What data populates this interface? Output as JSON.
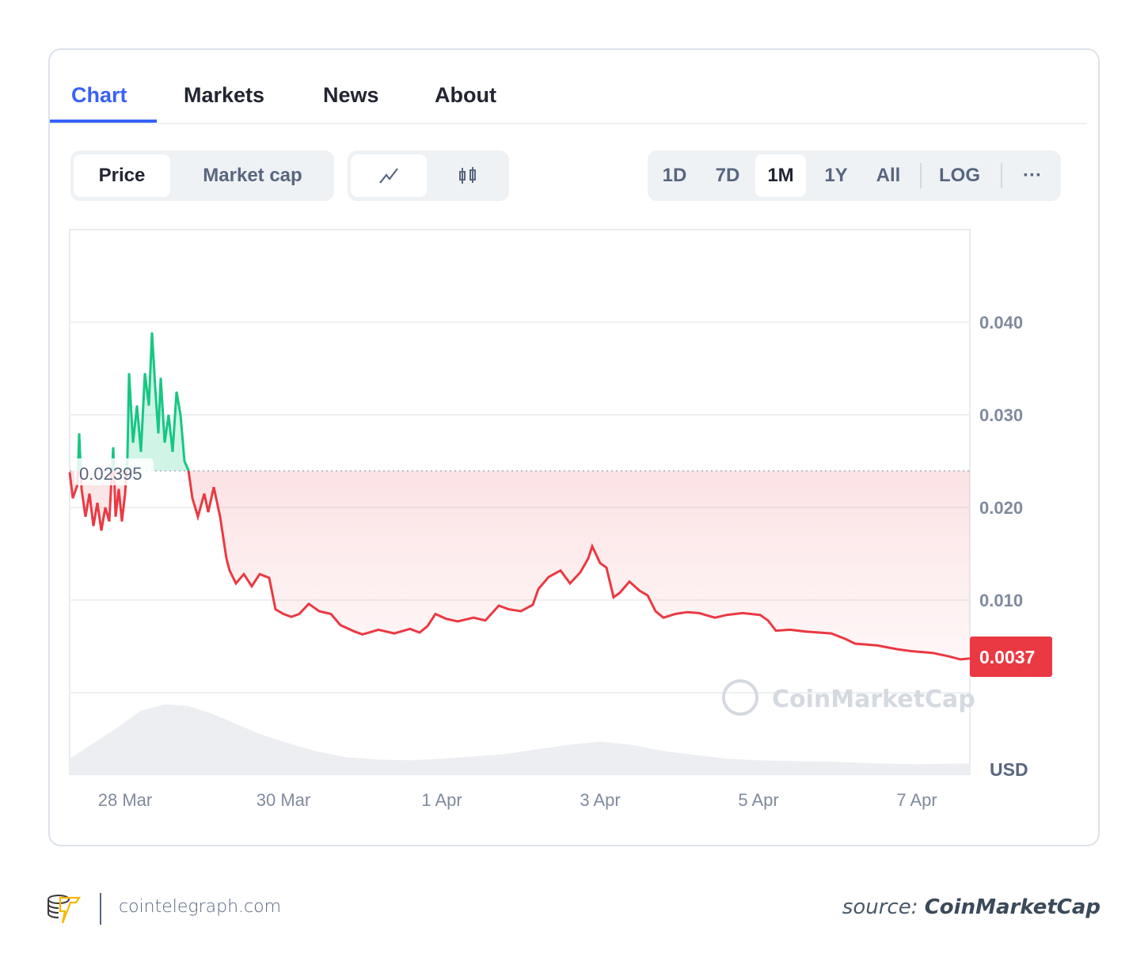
{
  "tabs": [
    {
      "label": "Chart"
    },
    {
      "label": "Markets"
    },
    {
      "label": "News"
    },
    {
      "label": "About"
    }
  ],
  "toggle": {
    "price": "Price",
    "market_cap": "Market cap"
  },
  "view_icons": [
    "line-chart-icon",
    "candlestick-icon"
  ],
  "ranges": [
    "1D",
    "7D",
    "1M",
    "1Y",
    "All"
  ],
  "log": "LOG",
  "more": "···",
  "colors": {
    "accent": "#3861fb",
    "up": "#16c784",
    "down": "#ea3943"
  },
  "chart_data": {
    "type": "line",
    "title": "",
    "xlabel": "",
    "ylabel": "USD",
    "currency": "USD",
    "x_unit": "days since 28 Mar",
    "xticks": [
      {
        "day": 0,
        "label": "28 Mar"
      },
      {
        "day": 2,
        "label": "30 Mar"
      },
      {
        "day": 4,
        "label": "1 Apr"
      },
      {
        "day": 6,
        "label": "3 Apr"
      },
      {
        "day": 8,
        "label": "5 Apr"
      },
      {
        "day": 10,
        "label": "7 Apr"
      }
    ],
    "yticks": [
      {
        "v": 0.01,
        "label": "0.010"
      },
      {
        "v": 0.02,
        "label": "0.020"
      },
      {
        "v": 0.03,
        "label": "0.030"
      },
      {
        "v": 0.04,
        "label": "0.040"
      }
    ],
    "ylim": [
      0,
      0.05
    ],
    "xlim": [
      -0.7,
      10.67
    ],
    "reference_price": 0.02395,
    "reference_label": "0.02395",
    "current_price_label": "0.0037",
    "watermark": "CoinMarketCap",
    "grid": true,
    "series": [
      {
        "name": "Price",
        "points": [
          [
            -0.7,
            0.0238
          ],
          [
            -0.66,
            0.021
          ],
          [
            -0.6,
            0.0225
          ],
          [
            -0.58,
            0.028
          ],
          [
            -0.55,
            0.022
          ],
          [
            -0.5,
            0.019
          ],
          [
            -0.45,
            0.0215
          ],
          [
            -0.4,
            0.018
          ],
          [
            -0.35,
            0.0205
          ],
          [
            -0.3,
            0.0175
          ],
          [
            -0.25,
            0.02
          ],
          [
            -0.2,
            0.0185
          ],
          [
            -0.15,
            0.0265
          ],
          [
            -0.12,
            0.019
          ],
          [
            -0.08,
            0.022
          ],
          [
            -0.04,
            0.0185
          ],
          [
            0,
            0.0215
          ],
          [
            0.03,
            0.0255
          ],
          [
            0.05,
            0.0345
          ],
          [
            0.1,
            0.027
          ],
          [
            0.15,
            0.031
          ],
          [
            0.2,
            0.026
          ],
          [
            0.25,
            0.0345
          ],
          [
            0.3,
            0.031
          ],
          [
            0.34,
            0.0389
          ],
          [
            0.38,
            0.033
          ],
          [
            0.42,
            0.028
          ],
          [
            0.45,
            0.034
          ],
          [
            0.5,
            0.027
          ],
          [
            0.55,
            0.03
          ],
          [
            0.6,
            0.026
          ],
          [
            0.65,
            0.0325
          ],
          [
            0.7,
            0.03
          ],
          [
            0.75,
            0.025
          ],
          [
            0.8,
            0.024
          ],
          [
            0.85,
            0.021
          ],
          [
            0.92,
            0.019
          ],
          [
            1.0,
            0.0215
          ],
          [
            1.05,
            0.0195
          ],
          [
            1.12,
            0.0222
          ],
          [
            1.2,
            0.019
          ],
          [
            1.28,
            0.0145
          ],
          [
            1.32,
            0.0132
          ],
          [
            1.4,
            0.0118
          ],
          [
            1.5,
            0.0128
          ],
          [
            1.6,
            0.0115
          ],
          [
            1.7,
            0.0128
          ],
          [
            1.82,
            0.0124
          ],
          [
            1.9,
            0.009
          ],
          [
            2.0,
            0.0085
          ],
          [
            2.1,
            0.0082
          ],
          [
            2.2,
            0.0085
          ],
          [
            2.32,
            0.0096
          ],
          [
            2.45,
            0.0088
          ],
          [
            2.6,
            0.0085
          ],
          [
            2.72,
            0.0073
          ],
          [
            2.9,
            0.0066
          ],
          [
            3.0,
            0.0063
          ],
          [
            3.2,
            0.0068
          ],
          [
            3.4,
            0.0064
          ],
          [
            3.6,
            0.0069
          ],
          [
            3.72,
            0.0065
          ],
          [
            3.82,
            0.0072
          ],
          [
            3.92,
            0.0085
          ],
          [
            4.05,
            0.008
          ],
          [
            4.2,
            0.0077
          ],
          [
            4.4,
            0.0081
          ],
          [
            4.55,
            0.0078
          ],
          [
            4.72,
            0.0094
          ],
          [
            4.85,
            0.009
          ],
          [
            5.0,
            0.0088
          ],
          [
            5.15,
            0.0095
          ],
          [
            5.22,
            0.0112
          ],
          [
            5.35,
            0.0125
          ],
          [
            5.5,
            0.0132
          ],
          [
            5.62,
            0.0118
          ],
          [
            5.75,
            0.013
          ],
          [
            5.85,
            0.0145
          ],
          [
            5.9,
            0.0158
          ],
          [
            6.0,
            0.014
          ],
          [
            6.08,
            0.0135
          ],
          [
            6.17,
            0.0103
          ],
          [
            6.25,
            0.0108
          ],
          [
            6.37,
            0.012
          ],
          [
            6.5,
            0.011
          ],
          [
            6.6,
            0.0105
          ],
          [
            6.7,
            0.0088
          ],
          [
            6.8,
            0.0081
          ],
          [
            6.95,
            0.0085
          ],
          [
            7.1,
            0.0087
          ],
          [
            7.25,
            0.0086
          ],
          [
            7.45,
            0.0081
          ],
          [
            7.6,
            0.0084
          ],
          [
            7.8,
            0.0086
          ],
          [
            8.02,
            0.0084
          ],
          [
            8.12,
            0.0078
          ],
          [
            8.22,
            0.0067
          ],
          [
            8.4,
            0.0068
          ],
          [
            8.6,
            0.0066
          ],
          [
            8.92,
            0.0064
          ],
          [
            9.1,
            0.0058
          ],
          [
            9.22,
            0.0053
          ],
          [
            9.5,
            0.0051
          ],
          [
            9.75,
            0.0047
          ],
          [
            9.92,
            0.0045
          ],
          [
            10.2,
            0.0043
          ],
          [
            10.42,
            0.0039
          ],
          [
            10.55,
            0.0036
          ],
          [
            10.67,
            0.0037
          ]
        ]
      }
    ],
    "volume_relative": [
      [
        -0.7,
        0.2
      ],
      [
        -0.4,
        0.4
      ],
      [
        -0.1,
        0.6
      ],
      [
        0.2,
        0.82
      ],
      [
        0.5,
        0.9
      ],
      [
        0.8,
        0.88
      ],
      [
        1.1,
        0.78
      ],
      [
        1.4,
        0.65
      ],
      [
        1.7,
        0.52
      ],
      [
        2.0,
        0.42
      ],
      [
        2.4,
        0.3
      ],
      [
        2.8,
        0.22
      ],
      [
        3.2,
        0.19
      ],
      [
        3.6,
        0.18
      ],
      [
        4.0,
        0.2
      ],
      [
        4.4,
        0.23
      ],
      [
        4.8,
        0.26
      ],
      [
        5.2,
        0.32
      ],
      [
        5.6,
        0.38
      ],
      [
        6.0,
        0.42
      ],
      [
        6.4,
        0.38
      ],
      [
        6.8,
        0.3
      ],
      [
        7.2,
        0.25
      ],
      [
        7.6,
        0.2
      ],
      [
        8.0,
        0.18
      ],
      [
        8.5,
        0.17
      ],
      [
        9.0,
        0.16
      ],
      [
        9.5,
        0.14
      ],
      [
        10.0,
        0.13
      ],
      [
        10.67,
        0.14
      ]
    ]
  },
  "footer": {
    "site": "cointelegraph.com",
    "source_prefix": "source: ",
    "source_name": "CoinMarketCap"
  }
}
